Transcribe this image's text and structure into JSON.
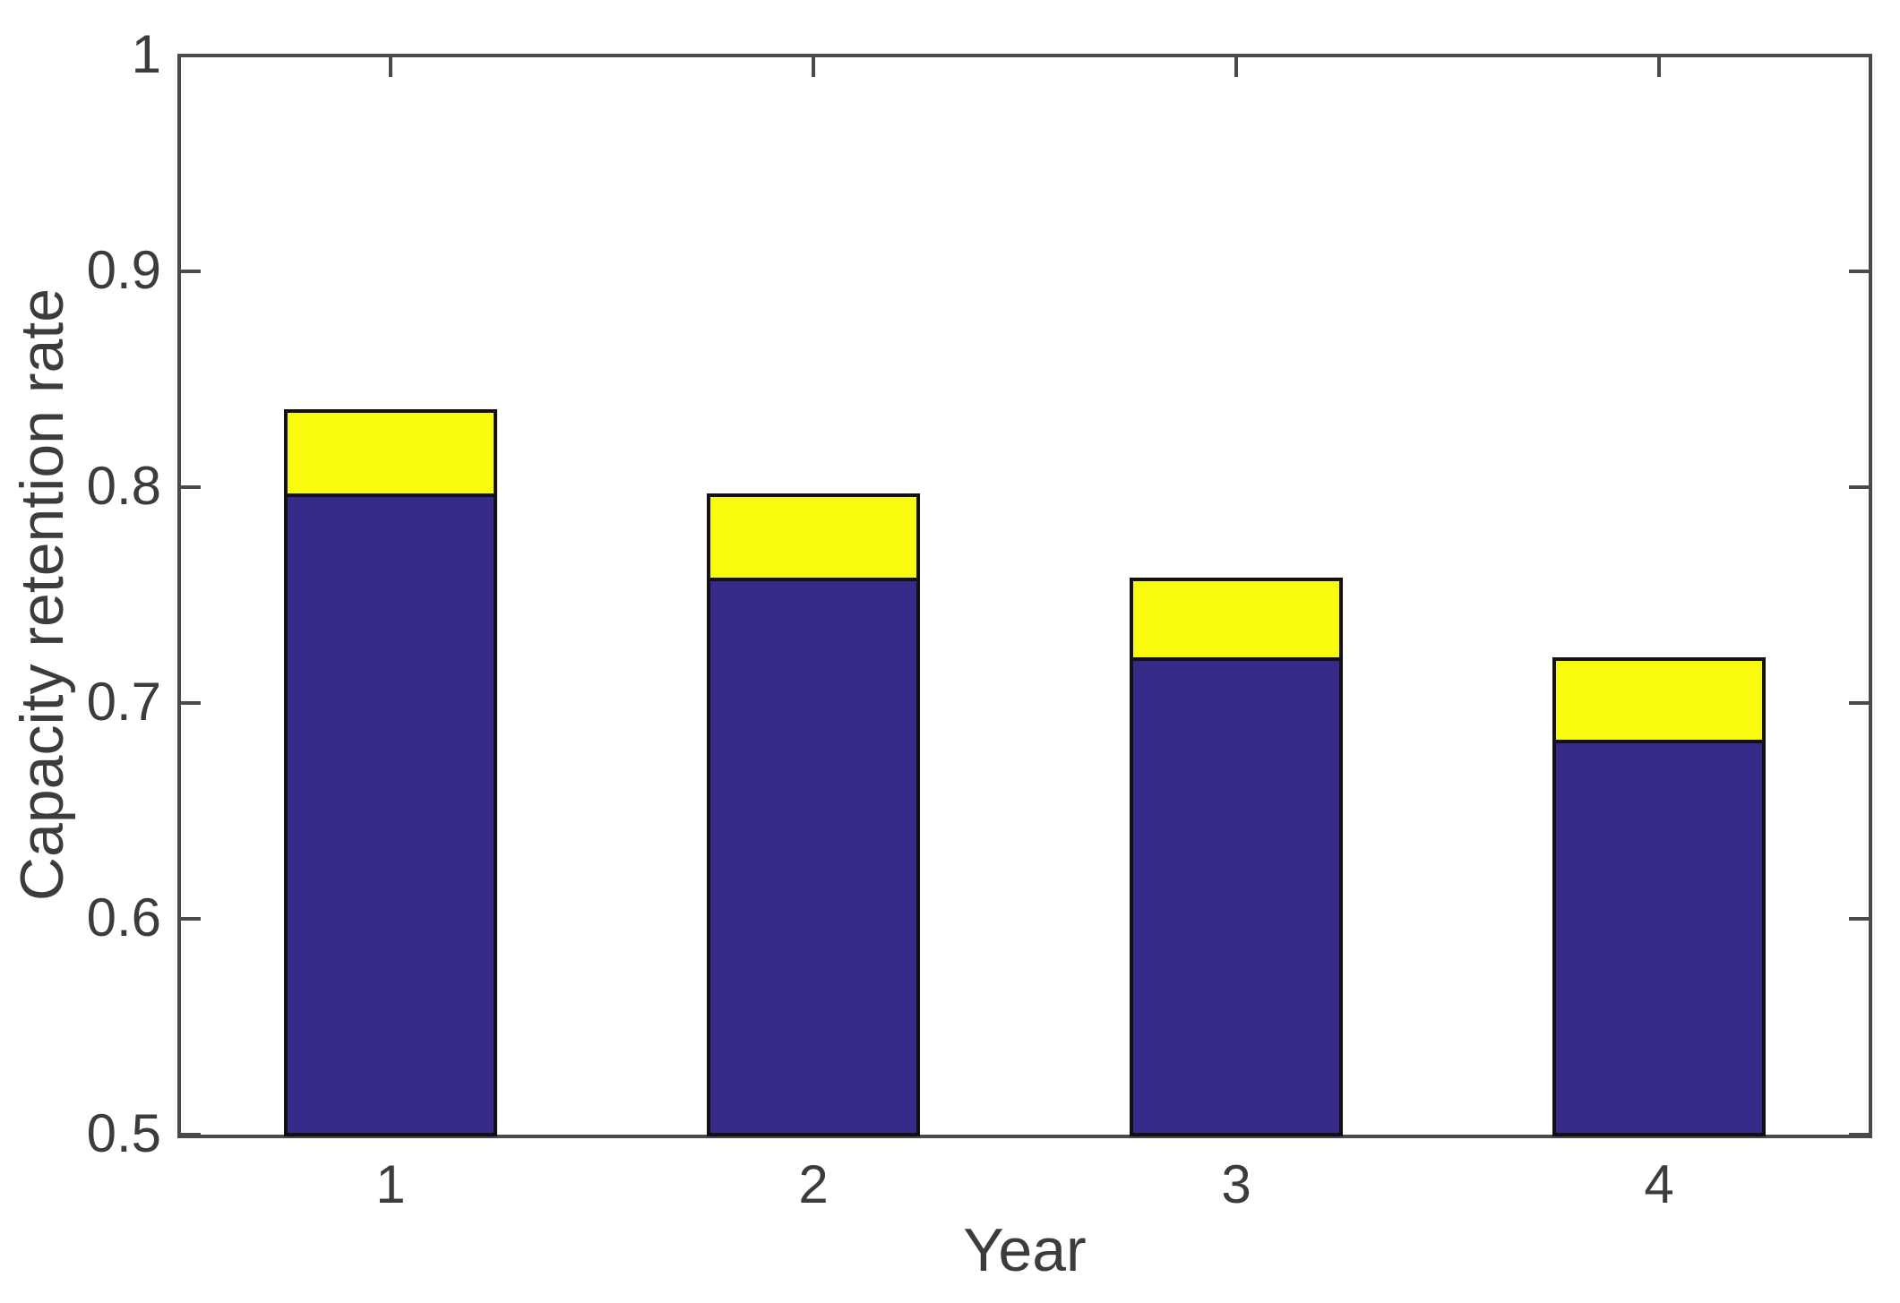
{
  "chart_data": {
    "type": "bar",
    "stacked": true,
    "title": "",
    "xlabel": "Year",
    "ylabel": "Capacity retention rate",
    "categories": [
      1,
      2,
      3,
      4
    ],
    "xtick_labels": [
      "1",
      "2",
      "3",
      "4"
    ],
    "series": [
      {
        "name": "blue",
        "color": "#352A87",
        "values": [
          0.797,
          0.758,
          0.721,
          0.683
        ]
      },
      {
        "name": "yellow",
        "color": "#F9FB0E",
        "values": [
          0.039,
          0.039,
          0.037,
          0.038
        ]
      }
    ],
    "stack_totals": [
      0.836,
      0.797,
      0.758,
      0.721
    ],
    "xlim": [
      0.5,
      4.5
    ],
    "ylim": [
      0.5,
      1.0
    ],
    "yticks": [
      0.5,
      0.6,
      0.7,
      0.8,
      0.9,
      1
    ],
    "ytick_labels": [
      "0.5",
      "0.6",
      "0.7",
      "0.8",
      "0.9",
      "1"
    ],
    "grid": false,
    "legend": false,
    "bar_edge_color": "#111111",
    "axis_color": "#4a4a4a",
    "text_color": "#3c3c3c",
    "background": "#ffffff"
  }
}
